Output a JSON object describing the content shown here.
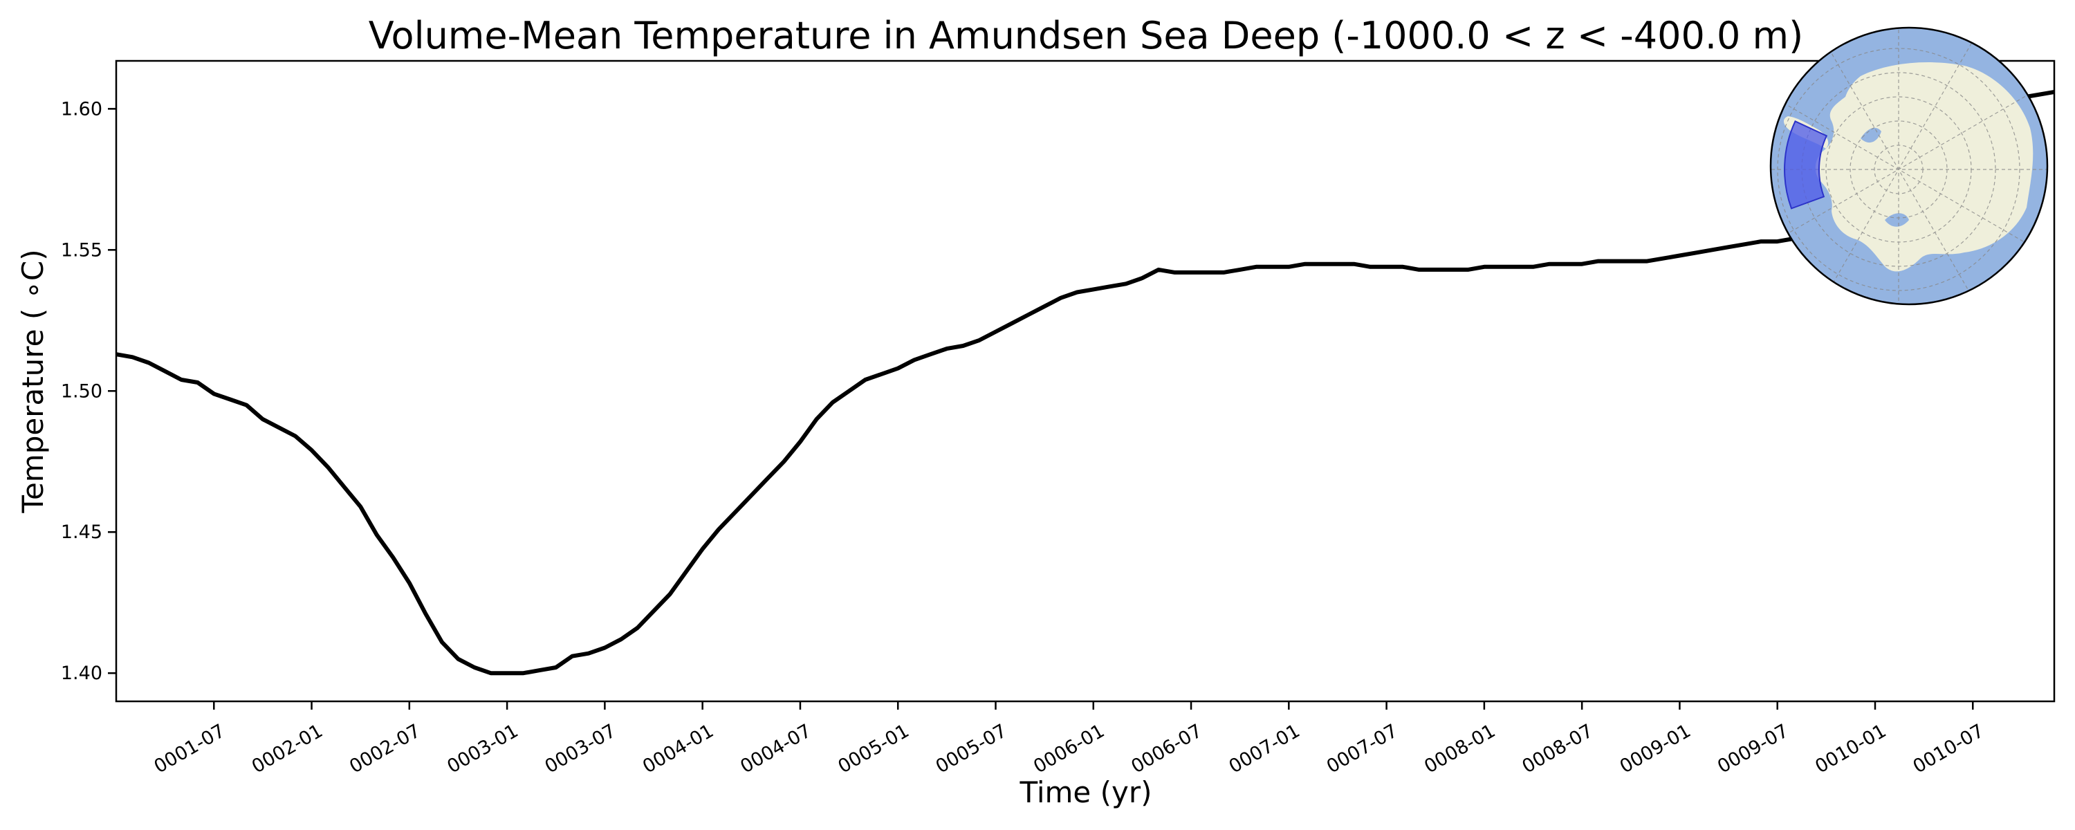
{
  "chart_data": {
    "type": "line",
    "title": "Volume-Mean Temperature in Amundsen Sea Deep (-1000.0 < z < -400.0 m)",
    "xlabel": "Time (yr)",
    "ylabel": "Temperature ( ∘C)",
    "ylim": [
      1.39,
      1.617
    ],
    "y_ticks": [
      1.4,
      1.45,
      1.5,
      1.55,
      1.6
    ],
    "y_tick_labels": [
      "1.40",
      "1.45",
      "1.50",
      "1.55",
      "1.60"
    ],
    "xlim": [
      0.0,
      119.0
    ],
    "x_ticks": [
      6,
      12,
      18,
      24,
      30,
      36,
      42,
      48,
      54,
      60,
      66,
      72,
      78,
      84,
      90,
      96,
      102,
      108,
      114
    ],
    "x_tick_labels": [
      "0001-07",
      "0002-01",
      "0002-07",
      "0003-01",
      "0003-07",
      "0004-01",
      "0004-07",
      "0005-01",
      "0005-07",
      "0006-01",
      "0006-07",
      "0007-01",
      "0007-07",
      "0008-01",
      "0008-07",
      "0009-01",
      "0009-07",
      "0010-01",
      "0010-07"
    ],
    "grid": false,
    "series": [
      {
        "color": "#000000",
        "x": [
          0,
          1,
          2,
          3,
          4,
          5,
          6,
          7,
          8,
          9,
          10,
          11,
          12,
          13,
          14,
          15,
          16,
          17,
          18,
          19,
          20,
          21,
          22,
          23,
          24,
          25,
          26,
          27,
          28,
          29,
          30,
          31,
          32,
          33,
          34,
          35,
          36,
          37,
          38,
          39,
          40,
          41,
          42,
          43,
          44,
          45,
          46,
          47,
          48,
          49,
          50,
          51,
          52,
          53,
          54,
          55,
          56,
          57,
          58,
          59,
          60,
          61,
          62,
          63,
          64,
          65,
          66,
          67,
          68,
          69,
          70,
          71,
          72,
          73,
          74,
          75,
          76,
          77,
          78,
          79,
          80,
          81,
          82,
          83,
          84,
          85,
          86,
          87,
          88,
          89,
          90,
          91,
          92,
          93,
          94,
          95,
          96,
          97,
          98,
          99,
          100,
          101,
          102,
          103,
          104,
          105,
          106,
          107,
          108,
          109,
          110,
          111,
          112,
          113,
          114,
          115,
          116,
          117,
          118,
          119
        ],
        "values": [
          1.513,
          1.512,
          1.51,
          1.507,
          1.504,
          1.503,
          1.499,
          1.497,
          1.495,
          1.49,
          1.487,
          1.484,
          1.479,
          1.473,
          1.466,
          1.459,
          1.449,
          1.441,
          1.432,
          1.421,
          1.411,
          1.405,
          1.402,
          1.4,
          1.4,
          1.4,
          1.401,
          1.402,
          1.406,
          1.407,
          1.409,
          1.412,
          1.416,
          1.422,
          1.428,
          1.436,
          1.444,
          1.451,
          1.457,
          1.463,
          1.469,
          1.475,
          1.482,
          1.49,
          1.496,
          1.5,
          1.504,
          1.506,
          1.508,
          1.511,
          1.513,
          1.515,
          1.516,
          1.518,
          1.521,
          1.524,
          1.527,
          1.53,
          1.533,
          1.535,
          1.536,
          1.537,
          1.538,
          1.54,
          1.543,
          1.542,
          1.542,
          1.542,
          1.542,
          1.543,
          1.544,
          1.544,
          1.544,
          1.545,
          1.545,
          1.545,
          1.545,
          1.544,
          1.544,
          1.544,
          1.543,
          1.543,
          1.543,
          1.543,
          1.544,
          1.544,
          1.544,
          1.544,
          1.545,
          1.545,
          1.545,
          1.546,
          1.546,
          1.546,
          1.546,
          1.547,
          1.548,
          1.549,
          1.55,
          1.551,
          1.552,
          1.553,
          1.553,
          1.554,
          1.555,
          1.556,
          1.557,
          1.559,
          1.562,
          1.566,
          1.571,
          1.577,
          1.583,
          1.589,
          1.594,
          1.598,
          1.602,
          1.604,
          1.605,
          1.606
        ]
      }
    ]
  },
  "inset_map": {
    "ocean_color": "#94b4e1",
    "land_color": "#efefdb",
    "region_color": "#4e5ae8",
    "icon": "antarctica-polar-map"
  }
}
